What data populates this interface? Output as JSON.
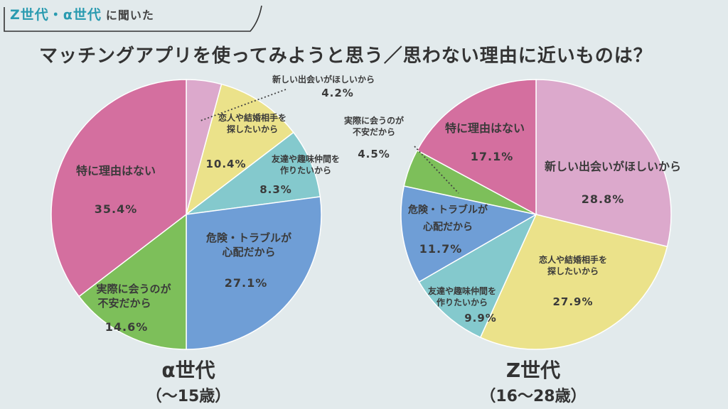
{
  "header": {
    "generations": "Z世代・α世代",
    "suffix": "に聞いた",
    "title": "マッチングアプリを使ってみようと思う／思わない理由に近いものは？"
  },
  "chart_data": [
    {
      "type": "pie",
      "title": "α世代",
      "subtitle": "（〜15歳）",
      "slices": [
        {
          "label": "新しい出会いがほしいから",
          "value": 4.2,
          "value_text": "4.2%",
          "color": "#dca9cc"
        },
        {
          "label": "恋人や結婚相手を探したいから",
          "value": 10.4,
          "value_text": "10.4%",
          "color": "#ebe28a"
        },
        {
          "label": "友達や趣味仲間を作りたいから",
          "value": 8.3,
          "value_text": "8.3%",
          "color": "#84c9cd"
        },
        {
          "label": "危険・トラブルが心配だから",
          "value": 27.1,
          "value_text": "27.1%",
          "color": "#6f9ed6"
        },
        {
          "label": "実際に会うのが不安だから",
          "value": 14.6,
          "value_text": "14.6%",
          "color": "#7dbf5a"
        },
        {
          "label": "特に理由はない",
          "value": 35.4,
          "value_text": "35.4%",
          "color": "#d46f9f"
        }
      ]
    },
    {
      "type": "pie",
      "title": "Z世代",
      "subtitle": "（16〜28歳）",
      "slices": [
        {
          "label": "新しい出会いがほしいから",
          "value": 28.8,
          "value_text": "28.8%",
          "color": "#dca9cc"
        },
        {
          "label": "恋人や結婚相手を探したいから",
          "value": 27.9,
          "value_text": "27.9%",
          "color": "#ebe28a"
        },
        {
          "label": "友達や趣味仲間を作りたいから",
          "value": 9.9,
          "value_text": "9.9%",
          "color": "#84c9cd"
        },
        {
          "label": "危険・トラブルが心配だから",
          "value": 11.7,
          "value_text": "11.7%",
          "color": "#6f9ed6"
        },
        {
          "label": "実際に会うのが不安だから",
          "value": 4.5,
          "value_text": "4.5%",
          "color": "#7dbf5a"
        },
        {
          "label": "特に理由はない",
          "value": 17.1,
          "value_text": "17.1%",
          "color": "#d46f9f"
        }
      ]
    }
  ]
}
